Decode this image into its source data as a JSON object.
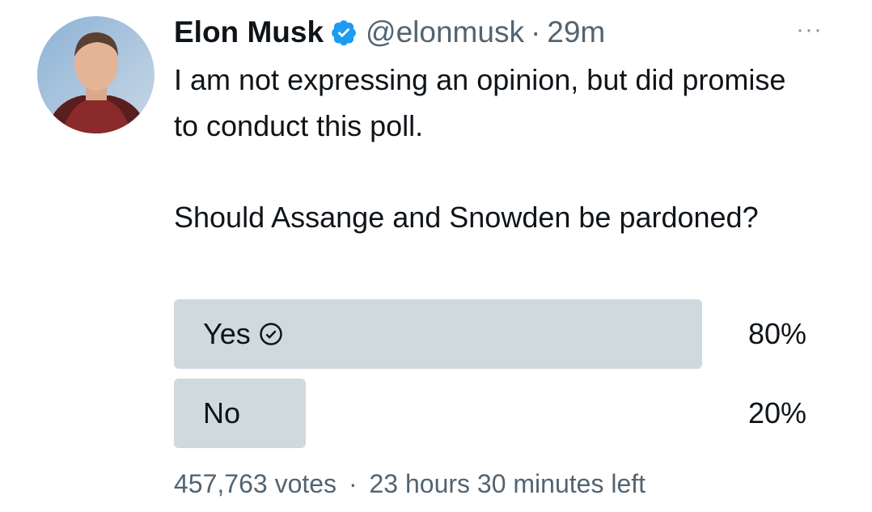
{
  "header": {
    "name": "Elon Musk",
    "handle": "@elonmusk",
    "separator": "·",
    "time": "29m",
    "more": "···"
  },
  "tweet": {
    "paragraphs": [
      "I am not expressing an opinion, but did promise to conduct this poll.",
      "Should Assange and Snowden be pardoned?"
    ]
  },
  "poll": {
    "options": [
      {
        "label": "Yes",
        "value": 80,
        "value_label": "80%"
      },
      {
        "label": "No",
        "value": 20,
        "value_label": "20%"
      }
    ],
    "votes": "457,763 votes",
    "separator": "·",
    "time_left": "23 hours 30 minutes left"
  }
}
